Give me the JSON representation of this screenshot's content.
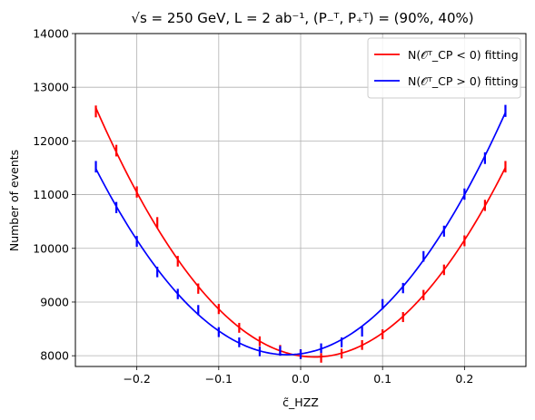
{
  "chart_data": {
    "type": "line",
    "title": "√s = 250 GeV,  L = 2 ab⁻¹,  (P₋ᵀ, P₊ᵀ) = (90%, 40%)",
    "xlabel": "c̃_HZZ",
    "ylabel": "Number of events",
    "xlim": [
      -0.275,
      0.275
    ],
    "ylim": [
      7800,
      14000
    ],
    "x_ticks": [
      -0.2,
      -0.1,
      0.0,
      0.1,
      0.2
    ],
    "x_tick_labels": [
      "−0.2",
      "−0.1",
      "0.0",
      "0.1",
      "0.2"
    ],
    "y_ticks": [
      8000,
      9000,
      10000,
      11000,
      12000,
      13000,
      14000
    ],
    "y_tick_labels": [
      "8000",
      "9000",
      "10000",
      "11000",
      "12000",
      "13000",
      "14000"
    ],
    "grid": true,
    "legend_position": "top-right",
    "series": [
      {
        "name": "N(𝒪ᵀ_CP < 0) fitting",
        "color": "#ff0000",
        "fit": {
          "a": 0,
          "b": 0,
          "c": 0
        },
        "x": [
          -0.25,
          -0.225,
          -0.2,
          -0.175,
          -0.15,
          -0.125,
          -0.1,
          -0.075,
          -0.05,
          -0.025,
          0.0,
          0.025,
          0.05,
          0.075,
          0.1,
          0.125,
          0.15,
          0.175,
          0.2,
          0.225,
          0.25
        ],
        "values": [
          12550,
          11820,
          11050,
          10480,
          9760,
          9250,
          8870,
          8520,
          8270,
          8110,
          8030,
          7960,
          8040,
          8200,
          8400,
          8720,
          9130,
          9600,
          10140,
          10800,
          11520
        ],
        "errors": [
          110,
          108,
          105,
          102,
          99,
          96,
          94,
          92,
          91,
          90,
          90,
          89,
          90,
          91,
          92,
          93,
          96,
          98,
          101,
          104,
          107
        ]
      },
      {
        "name": "N(𝒪ᵀ_CP > 0) fitting",
        "color": "#0000ff",
        "fit": {
          "a": 0,
          "b": 0,
          "c": 0
        },
        "x": [
          -0.25,
          -0.225,
          -0.2,
          -0.175,
          -0.15,
          -0.125,
          -0.1,
          -0.075,
          -0.05,
          -0.025,
          0.0,
          0.025,
          0.05,
          0.075,
          0.1,
          0.125,
          0.15,
          0.175,
          0.2,
          0.225,
          0.25
        ],
        "values": [
          11520,
          10760,
          10130,
          9560,
          9150,
          8850,
          8440,
          8250,
          8080,
          8090,
          8030,
          8140,
          8250,
          8450,
          8960,
          9260,
          9850,
          10320,
          11010,
          11680,
          12560
        ],
        "errors": [
          107,
          104,
          101,
          98,
          96,
          94,
          92,
          91,
          90,
          90,
          90,
          90,
          91,
          92,
          95,
          96,
          99,
          102,
          105,
          108,
          112
        ]
      }
    ]
  }
}
